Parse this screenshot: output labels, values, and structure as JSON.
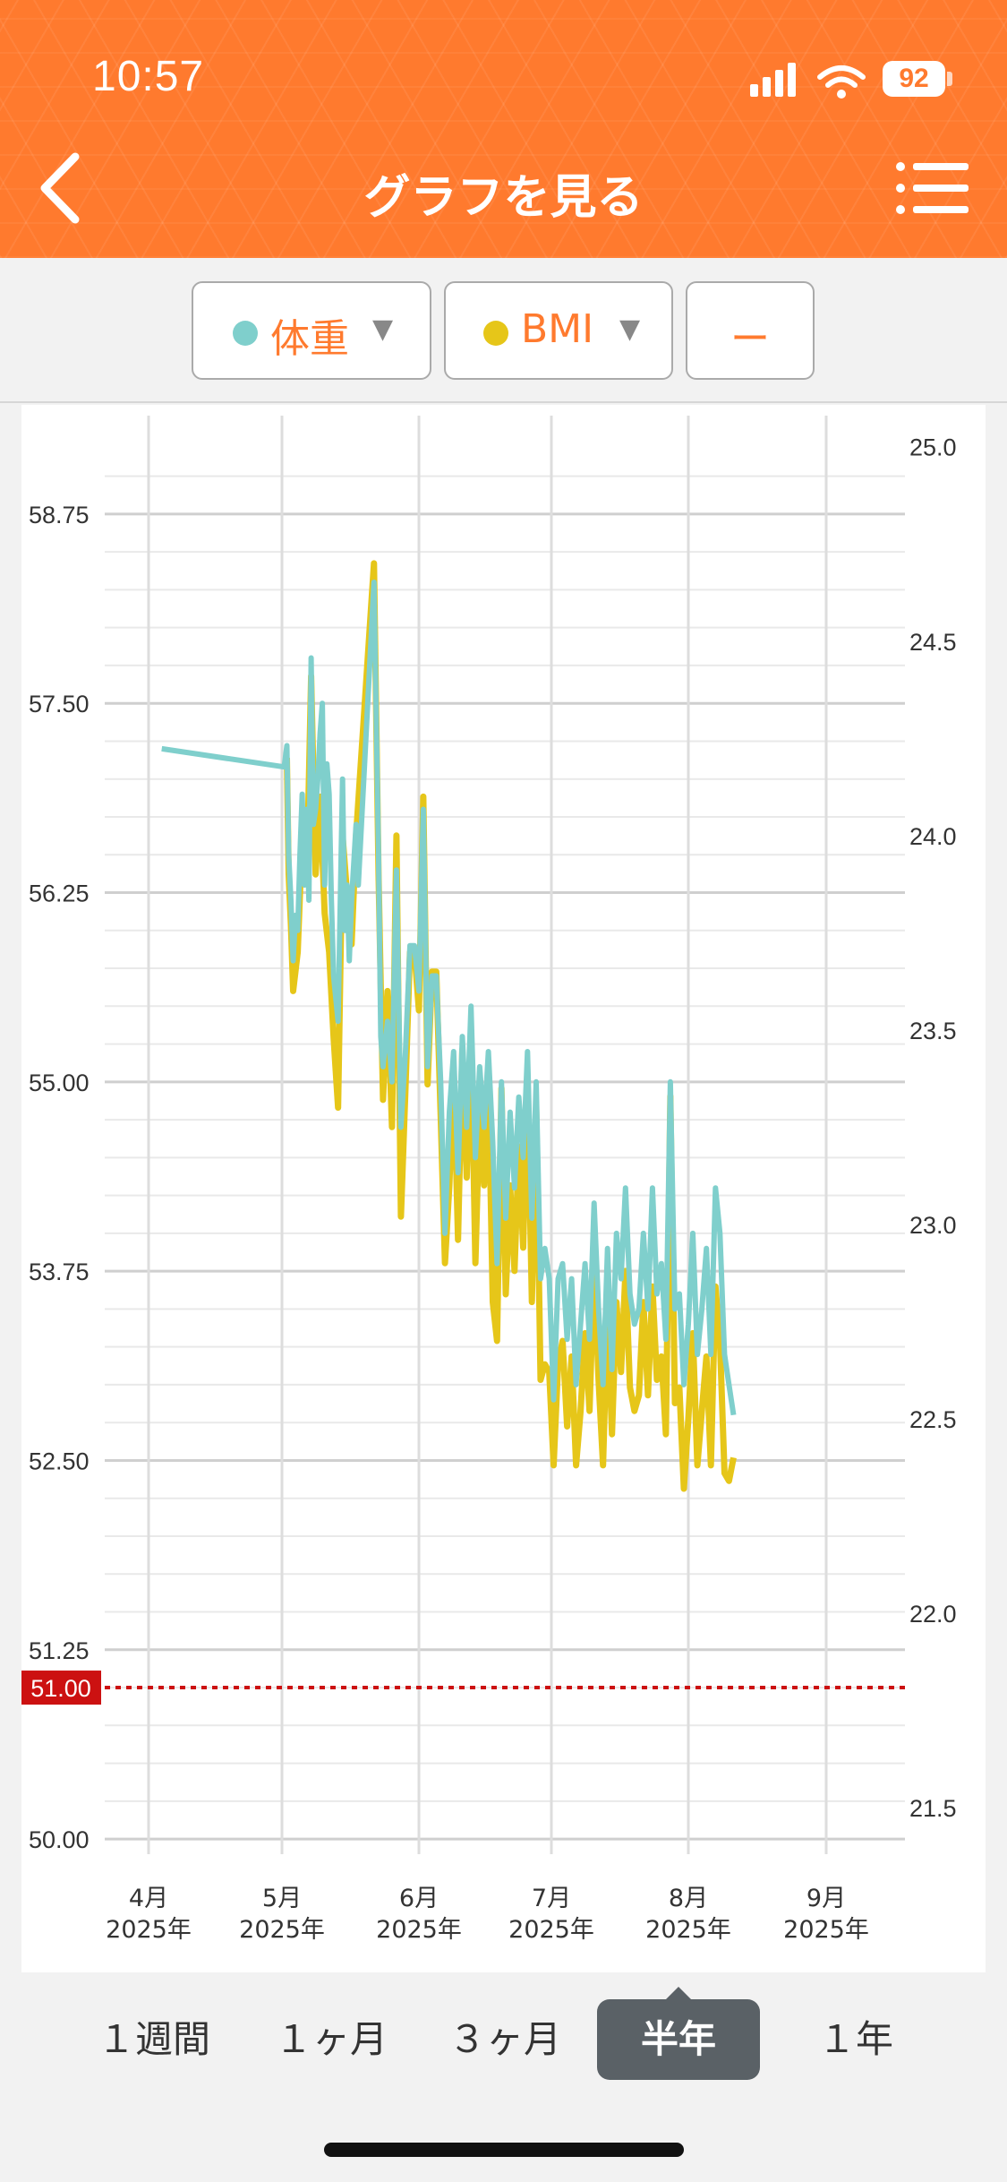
{
  "status_bar": {
    "time": "10:57",
    "battery": "92"
  },
  "nav": {
    "title": "グラフを見る",
    "back_icon": "chevron-left-icon",
    "menu_icon": "list-menu-icon"
  },
  "toolbar": {
    "weight_label": "体重",
    "weight_color": "#7fcfcc",
    "bmi_label": "BMI",
    "bmi_color": "#e6c619",
    "dash_label": "ー"
  },
  "chart_data": {
    "type": "line",
    "y_left_ticks": [
      "50.00",
      "51.25",
      "52.50",
      "53.75",
      "55.00",
      "56.25",
      "57.50",
      "58.75"
    ],
    "y_right_ticks": [
      "21.5",
      "22.0",
      "22.5",
      "23.0",
      "23.5",
      "24.0",
      "24.5",
      "25.0"
    ],
    "y_left_range": [
      49.9,
      59.4
    ],
    "y_right_range": [
      21.38,
      25.08
    ],
    "x_labels": [
      {
        "month": "4月",
        "year": "2025年"
      },
      {
        "month": "5月",
        "year": "2025年"
      },
      {
        "month": "6月",
        "year": "2025年"
      },
      {
        "month": "7月",
        "year": "2025年"
      },
      {
        "month": "8月",
        "year": "2025年"
      },
      {
        "month": "9月",
        "year": "2025年"
      }
    ],
    "target_value": "51.00",
    "target_color": "#cc1111",
    "series": [
      {
        "name": "体重",
        "color": "#7fcfcc",
        "points": [
          [
            3,
            57.2
          ],
          [
            31,
            57.08
          ],
          [
            31.6,
            57.22
          ],
          [
            32,
            56.5
          ],
          [
            32.5,
            56.2
          ],
          [
            33,
            55.8
          ],
          [
            33.5,
            56.1
          ],
          [
            34,
            56.0
          ],
          [
            34.5,
            56.5
          ],
          [
            35,
            56.9
          ],
          [
            35.5,
            56.3
          ],
          [
            36,
            56.8
          ],
          [
            36.5,
            56.2
          ],
          [
            37,
            57.8
          ],
          [
            37.5,
            56.7
          ],
          [
            38,
            56.8
          ],
          [
            38.5,
            57.0
          ],
          [
            39,
            57.3
          ],
          [
            39.5,
            57.5
          ],
          [
            40,
            56.3
          ],
          [
            40.5,
            57.1
          ],
          [
            41,
            56.9
          ],
          [
            41.5,
            56.2
          ],
          [
            42,
            55.7
          ],
          [
            43,
            55.4
          ],
          [
            44,
            57.0
          ],
          [
            44.5,
            56.0
          ],
          [
            45,
            56.3
          ],
          [
            45.5,
            55.8
          ],
          [
            46,
            56.2
          ],
          [
            47,
            56.7
          ],
          [
            47.5,
            56.3
          ],
          [
            51,
            58.3
          ],
          [
            52,
            56.5
          ],
          [
            52.5,
            55.3
          ],
          [
            53,
            55.1
          ],
          [
            54,
            55.4
          ],
          [
            55,
            55.0
          ],
          [
            56,
            56.4
          ],
          [
            57,
            54.7
          ],
          [
            58,
            55.2
          ],
          [
            59,
            55.9
          ],
          [
            60,
            55.9
          ],
          [
            61,
            55.6
          ],
          [
            62,
            56.8
          ],
          [
            63,
            55.1
          ],
          [
            64,
            55.7
          ],
          [
            65,
            55.7
          ],
          [
            66,
            55.0
          ],
          [
            67,
            54.0
          ],
          [
            68,
            54.8
          ],
          [
            69,
            55.2
          ],
          [
            70,
            54.4
          ],
          [
            71,
            55.3
          ],
          [
            72,
            54.7
          ],
          [
            73,
            55.5
          ],
          [
            74,
            54.5
          ],
          [
            75,
            55.1
          ],
          [
            76,
            54.7
          ],
          [
            77,
            55.2
          ],
          [
            78,
            54.6
          ],
          [
            79,
            53.8
          ],
          [
            80,
            55.0
          ],
          [
            81,
            54.1
          ],
          [
            82,
            54.8
          ],
          [
            83,
            54.3
          ],
          [
            84,
            54.9
          ],
          [
            85,
            54.5
          ],
          [
            86,
            55.2
          ],
          [
            87,
            54.1
          ],
          [
            88,
            55.0
          ],
          [
            89,
            53.7
          ],
          [
            90,
            53.9
          ],
          [
            91,
            53.7
          ],
          [
            92,
            52.9
          ],
          [
            93,
            53.7
          ],
          [
            94,
            53.8
          ],
          [
            95,
            53.3
          ],
          [
            96,
            53.7
          ],
          [
            97,
            53.0
          ],
          [
            98,
            53.4
          ],
          [
            99,
            53.8
          ],
          [
            100,
            53.3
          ],
          [
            101,
            54.2
          ],
          [
            102,
            53.5
          ],
          [
            103,
            53.0
          ],
          [
            104,
            53.9
          ],
          [
            105,
            53.1
          ],
          [
            106,
            54.0
          ],
          [
            107,
            53.7
          ],
          [
            108,
            54.3
          ],
          [
            109,
            53.6
          ],
          [
            110,
            53.4
          ],
          [
            111,
            53.5
          ],
          [
            112,
            54.0
          ],
          [
            113,
            53.5
          ],
          [
            114,
            54.3
          ],
          [
            115,
            53.6
          ],
          [
            116,
            53.8
          ],
          [
            117,
            53.3
          ],
          [
            118,
            55.0
          ],
          [
            119,
            53.5
          ],
          [
            120,
            53.6
          ],
          [
            121,
            53.0
          ],
          [
            122,
            53.4
          ],
          [
            123,
            54.0
          ],
          [
            124,
            53.2
          ],
          [
            125,
            53.5
          ],
          [
            126,
            53.9
          ],
          [
            127,
            53.2
          ],
          [
            128,
            54.3
          ],
          [
            129,
            54.0
          ],
          [
            130,
            53.2
          ],
          [
            131,
            53.0
          ],
          [
            132,
            52.8
          ]
        ]
      },
      {
        "name": "BMI",
        "color": "#e6c619",
        "points": [
          [
            31.6,
            24.2
          ],
          [
            32,
            23.9
          ],
          [
            32.5,
            23.77
          ],
          [
            33,
            23.6
          ],
          [
            34,
            23.7
          ],
          [
            35,
            24.0
          ],
          [
            36,
            23.88
          ],
          [
            37,
            24.41
          ],
          [
            38,
            23.9
          ],
          [
            39,
            24.1
          ],
          [
            40,
            23.8
          ],
          [
            41,
            23.7
          ],
          [
            42,
            23.48
          ],
          [
            43,
            23.3
          ],
          [
            44,
            24.0
          ],
          [
            45,
            23.85
          ],
          [
            46,
            23.72
          ],
          [
            47,
            24.0
          ],
          [
            51,
            24.7
          ],
          [
            52,
            23.9
          ],
          [
            53,
            23.32
          ],
          [
            54,
            23.6
          ],
          [
            55,
            23.25
          ],
          [
            56,
            24.0
          ],
          [
            57,
            23.02
          ],
          [
            58,
            23.35
          ],
          [
            59,
            23.7
          ],
          [
            60,
            23.7
          ],
          [
            61,
            23.55
          ],
          [
            62,
            24.1
          ],
          [
            63,
            23.36
          ],
          [
            64,
            23.65
          ],
          [
            65,
            23.65
          ],
          [
            66,
            23.28
          ],
          [
            67,
            22.9
          ],
          [
            68,
            23.1
          ],
          [
            69,
            23.4
          ],
          [
            70,
            22.96
          ],
          [
            71,
            23.45
          ],
          [
            72,
            23.12
          ],
          [
            73,
            23.5
          ],
          [
            74,
            22.9
          ],
          [
            75,
            23.3
          ],
          [
            76,
            23.1
          ],
          [
            77,
            23.38
          ],
          [
            78,
            22.8
          ],
          [
            79,
            22.7
          ],
          [
            80,
            23.35
          ],
          [
            81,
            22.82
          ],
          [
            82,
            23.1
          ],
          [
            83,
            22.88
          ],
          [
            84,
            23.2
          ],
          [
            85,
            22.94
          ],
          [
            86,
            23.38
          ],
          [
            87,
            22.8
          ],
          [
            88,
            23.3
          ],
          [
            89,
            22.6
          ],
          [
            90,
            22.64
          ],
          [
            91,
            22.62
          ],
          [
            92,
            22.38
          ],
          [
            93,
            22.64
          ],
          [
            94,
            22.7
          ],
          [
            95,
            22.48
          ],
          [
            96,
            22.66
          ],
          [
            97,
            22.38
          ],
          [
            98,
            22.52
          ],
          [
            99,
            22.72
          ],
          [
            100,
            22.52
          ],
          [
            101,
            22.9
          ],
          [
            102,
            22.6
          ],
          [
            103,
            22.38
          ],
          [
            104,
            22.78
          ],
          [
            105,
            22.46
          ],
          [
            106,
            22.8
          ],
          [
            107,
            22.62
          ],
          [
            108,
            22.88
          ],
          [
            109,
            22.58
          ],
          [
            110,
            22.52
          ],
          [
            111,
            22.56
          ],
          [
            112,
            22.8
          ],
          [
            113,
            22.56
          ],
          [
            114,
            22.84
          ],
          [
            115,
            22.6
          ],
          [
            116,
            22.66
          ],
          [
            117,
            22.46
          ],
          [
            118,
            23.33
          ],
          [
            119,
            22.54
          ],
          [
            120,
            22.58
          ],
          [
            121,
            22.32
          ],
          [
            122,
            22.5
          ],
          [
            123,
            22.72
          ],
          [
            124,
            22.38
          ],
          [
            125,
            22.52
          ],
          [
            126,
            22.66
          ],
          [
            127,
            22.38
          ],
          [
            128,
            22.84
          ],
          [
            129,
            22.7
          ],
          [
            130,
            22.36
          ],
          [
            131,
            22.34
          ],
          [
            132,
            22.4
          ]
        ]
      }
    ]
  },
  "range_tabs": {
    "tabs": [
      "１週間",
      "１ヶ月",
      "３ヶ月",
      "半年",
      "１年"
    ],
    "active": "半年"
  }
}
